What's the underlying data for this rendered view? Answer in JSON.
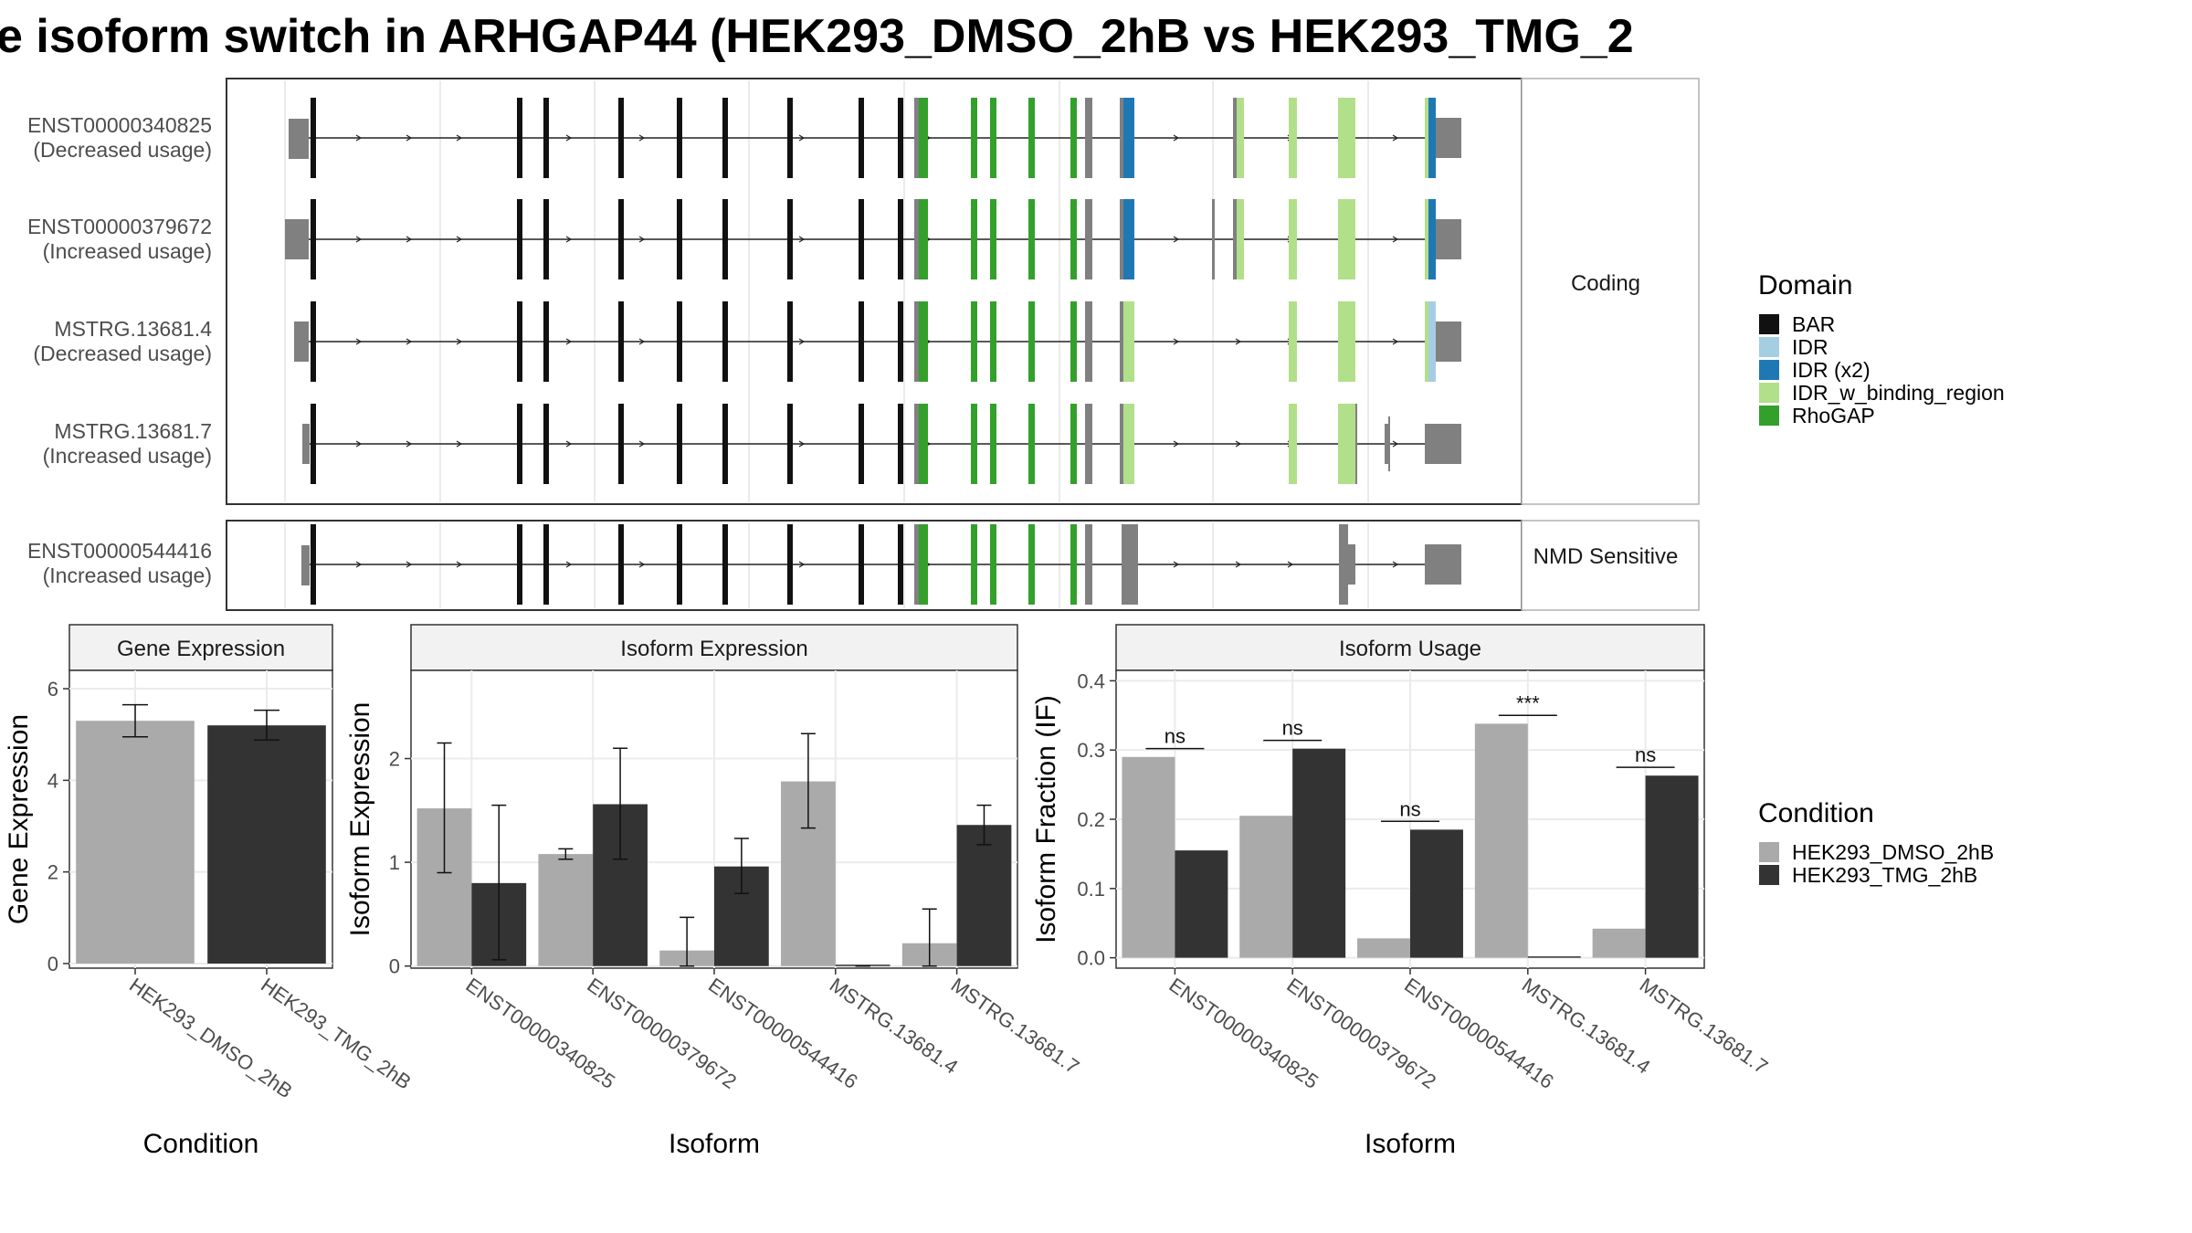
{
  "title": "e isoform switch in ARHGAP44 (HEK293_DMSO_2hB vs HEK293_TMG_2",
  "colors": {
    "DMSO": "#aaaaaa",
    "TMG": "#333333",
    "BAR": "#111111",
    "IDR": "#a6cee3",
    "IDR (x2)": "#1f78b4",
    "IDR_w_binding_region": "#b2df8a",
    "RhoGAP": "#33a02c",
    "utr": "#808080",
    "exon": "#111111"
  },
  "structure": {
    "coding_label": "Coding",
    "nmd_label": "NMD Sensitive",
    "transcripts": [
      {
        "id": "ENST00000340825",
        "usage": "(Decreased usage)",
        "panel": "coding"
      },
      {
        "id": "ENST00000379672",
        "usage": "(Increased usage)",
        "panel": "coding"
      },
      {
        "id": "MSTRG.13681.4",
        "usage": "(Decreased usage)",
        "panel": "coding"
      },
      {
        "id": "MSTRG.13681.7",
        "usage": "(Increased usage)",
        "panel": "coding"
      },
      {
        "id": "ENST00000544416",
        "usage": "(Increased usage)",
        "panel": "nmd"
      }
    ]
  },
  "legend_domain": {
    "title": "Domain",
    "items": [
      "BAR",
      "IDR",
      "IDR (x2)",
      "IDR_w_binding_region",
      "RhoGAP"
    ]
  },
  "legend_condition": {
    "title": "Condition",
    "items": [
      "HEK293_DMSO_2hB",
      "HEK293_TMG_2hB"
    ]
  },
  "chart_data": [
    {
      "type": "bar",
      "title": "Gene Expression",
      "xlabel": "Condition",
      "ylabel": "Gene Expression",
      "ylim": [
        -0.1,
        6.4
      ],
      "yticks": [
        0,
        2,
        4,
        6
      ],
      "categories": [
        "HEK293_DMSO_2hB",
        "HEK293_TMG_2hB"
      ],
      "values": [
        5.3,
        5.2
      ],
      "errors": [
        [
          4.95,
          5.65
        ],
        [
          4.88,
          5.53
        ]
      ]
    },
    {
      "type": "bar",
      "title": "Isoform Expression",
      "xlabel": "Isoform",
      "ylabel": "Isoform Expression",
      "ylim": [
        -0.02,
        2.85
      ],
      "yticks": [
        0,
        1,
        2
      ],
      "categories": [
        "ENST00000340825",
        "ENST00000379672",
        "ENST00000544416",
        "MSTRG.13681.4",
        "MSTRG.13681.7"
      ],
      "series": [
        {
          "name": "HEK293_DMSO_2hB",
          "values": [
            1.52,
            1.08,
            0.15,
            1.78,
            0.22
          ],
          "errors": [
            [
              0.9,
              2.15
            ],
            [
              1.03,
              1.13
            ],
            [
              0.0,
              0.47
            ],
            [
              1.33,
              2.24
            ],
            [
              0.0,
              0.55
            ]
          ]
        },
        {
          "name": "HEK293_TMG_2hB",
          "values": [
            0.8,
            1.56,
            0.96,
            0.0,
            1.36
          ],
          "errors": [
            [
              0.06,
              1.55
            ],
            [
              1.03,
              2.1
            ],
            [
              0.7,
              1.23
            ],
            [
              0.0,
              0.0
            ],
            [
              1.17,
              1.55
            ]
          ]
        }
      ]
    },
    {
      "type": "bar",
      "title": "Isoform Usage",
      "xlabel": "Isoform",
      "ylabel": "Isoform Fraction (IF)",
      "ylim": [
        -0.015,
        0.415
      ],
      "yticks": [
        "0.0",
        "0.1",
        "0.2",
        "0.3",
        "0.4"
      ],
      "categories": [
        "ENST00000340825",
        "ENST00000379672",
        "ENST00000544416",
        "MSTRG.13681.4",
        "MSTRG.13681.7"
      ],
      "series": [
        {
          "name": "HEK293_DMSO_2hB",
          "values": [
            0.29,
            0.205,
            0.028,
            0.338,
            0.042
          ]
        },
        {
          "name": "HEK293_TMG_2hB",
          "values": [
            0.155,
            0.302,
            0.185,
            0.0,
            0.263
          ]
        }
      ],
      "significance": [
        "ns",
        "ns",
        "ns",
        "***",
        "ns"
      ]
    }
  ]
}
